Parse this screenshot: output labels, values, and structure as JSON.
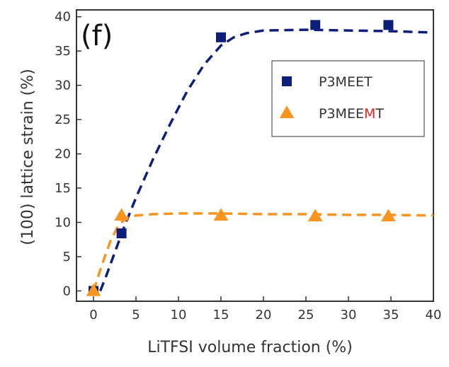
{
  "chart_data": {
    "type": "scatter",
    "panel_label": "(f)",
    "xlabel": "LiTFSI volume fraction (%)",
    "ylabel": "(100) lattice strain (%)",
    "xlim": [
      -2,
      40
    ],
    "ylim": [
      -1.5,
      41
    ],
    "x_ticks": [
      0,
      5,
      10,
      15,
      20,
      25,
      30,
      35,
      40
    ],
    "y_ticks": [
      0,
      5,
      10,
      15,
      20,
      25,
      30,
      35,
      40
    ],
    "grid": false,
    "legend_position": "top-right",
    "series": [
      {
        "name": "P3MEET",
        "name_parts": [
          {
            "text": "P3MEET",
            "color": "#333333"
          }
        ],
        "marker": "square",
        "color": "#0d1f7a",
        "points": [
          [
            0,
            0
          ],
          [
            3.3,
            8.4
          ],
          [
            15,
            37
          ],
          [
            26.1,
            38.8
          ],
          [
            34.7,
            38.8
          ]
        ],
        "fit": [
          [
            0.8,
            0
          ],
          [
            1.5,
            2.2
          ],
          [
            2.5,
            5.6
          ],
          [
            3.5,
            9.0
          ],
          [
            5,
            13.6
          ],
          [
            7,
            19.2
          ],
          [
            9,
            24.3
          ],
          [
            11,
            29.1
          ],
          [
            13,
            33.0
          ],
          [
            15,
            35.8
          ],
          [
            16.5,
            37.0
          ],
          [
            18,
            37.6
          ],
          [
            20,
            38.0
          ],
          [
            25,
            38.1
          ],
          [
            30,
            38.0
          ],
          [
            35,
            37.9
          ],
          [
            40,
            37.7
          ]
        ]
      },
      {
        "name": "P3MEEMT",
        "name_parts": [
          {
            "text": "P3MEE",
            "color": "#333333"
          },
          {
            "text": "M",
            "color": "#e8231f"
          },
          {
            "text": "T",
            "color": "#333333"
          }
        ],
        "marker": "triangle",
        "color": "#f8941f",
        "points": [
          [
            0,
            0
          ],
          [
            3.3,
            11
          ],
          [
            15,
            11
          ],
          [
            26.1,
            10.9
          ],
          [
            34.7,
            10.9
          ]
        ],
        "fit": [
          [
            0,
            0
          ],
          [
            1,
            3.8
          ],
          [
            2,
            7.3
          ],
          [
            3,
            9.7
          ],
          [
            4,
            10.7
          ],
          [
            5,
            11.0
          ],
          [
            7,
            11.2
          ],
          [
            10,
            11.3
          ],
          [
            15,
            11.3
          ],
          [
            20,
            11.2
          ],
          [
            25,
            11.2
          ],
          [
            30,
            11.1
          ],
          [
            35,
            11.1
          ],
          [
            40,
            11.0
          ]
        ]
      }
    ]
  }
}
